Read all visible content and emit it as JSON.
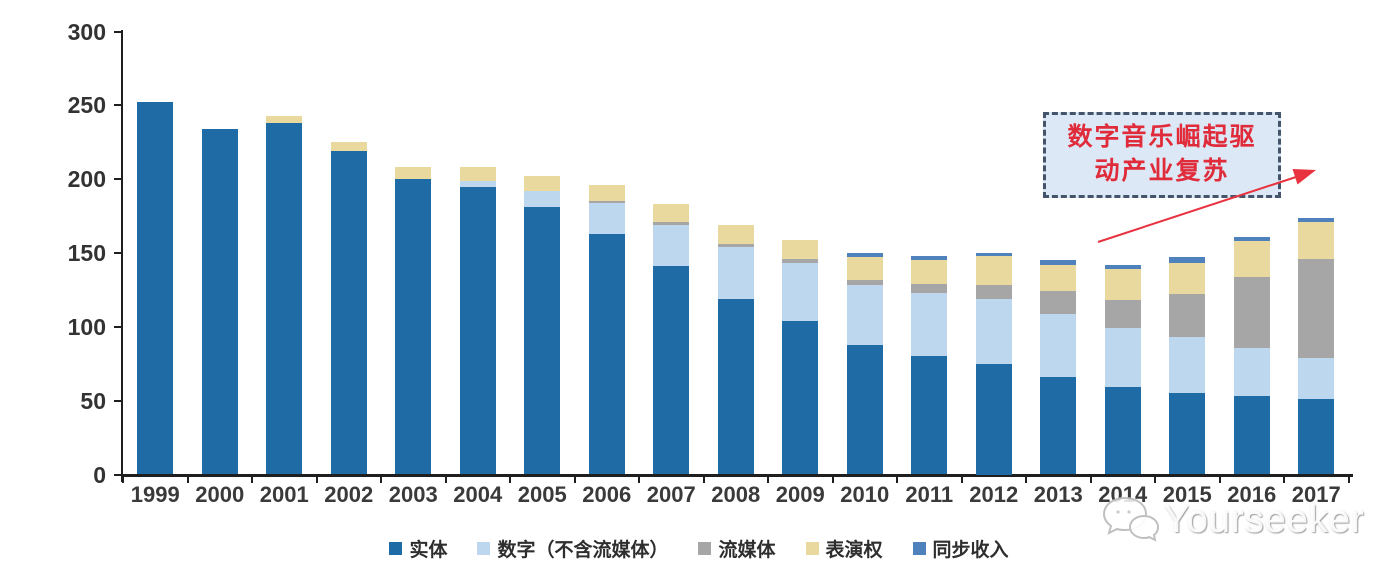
{
  "chart_data": {
    "type": "bar",
    "stacked": true,
    "title": "",
    "xlabel": "",
    "ylabel": "",
    "grid": false,
    "legend_position": "bottom",
    "ylim": [
      0,
      300
    ],
    "yticks": [
      0,
      50,
      100,
      150,
      200,
      250,
      300
    ],
    "categories": [
      "1999",
      "2000",
      "2001",
      "2002",
      "2003",
      "2004",
      "2005",
      "2006",
      "2007",
      "2008",
      "2009",
      "2010",
      "2011",
      "2012",
      "2013",
      "2014",
      "2015",
      "2016",
      "2017"
    ],
    "series": [
      {
        "name": "实体",
        "color": "#1f6ba5",
        "values": [
          252,
          234,
          238,
          219,
          200,
          195,
          181,
          163,
          141,
          119,
          104,
          88,
          80,
          75,
          66,
          59,
          55,
          53,
          51
        ]
      },
      {
        "name": "数字（不含流媒体）",
        "color": "#bdd7ee",
        "values": [
          0,
          0,
          0,
          0,
          0,
          4,
          11,
          21,
          28,
          35,
          39,
          40,
          43,
          44,
          43,
          40,
          38,
          33,
          28
        ]
      },
      {
        "name": "流媒体",
        "color": "#a6a6a6",
        "values": [
          0,
          0,
          0,
          0,
          0,
          0,
          0,
          1,
          2,
          2,
          3,
          4,
          6,
          9,
          15,
          19,
          29,
          48,
          67
        ]
      },
      {
        "name": "表演权",
        "color": "#e9d99e",
        "values": [
          0,
          0,
          5,
          6,
          8,
          9,
          10,
          11,
          12,
          13,
          13,
          15,
          16,
          20,
          18,
          21,
          21,
          24,
          25
        ]
      },
      {
        "name": "同步收入",
        "color": "#4f81bd",
        "values": [
          0,
          0,
          0,
          0,
          0,
          0,
          0,
          0,
          0,
          0,
          0,
          3,
          3,
          2,
          3,
          3,
          4,
          3,
          3
        ]
      }
    ]
  },
  "annotation": {
    "text": "数字音乐崛起驱动产业复苏",
    "line1": "数字音乐崛起驱",
    "line2": "动产业复苏",
    "text_color": "#e02b3a",
    "box_fill": "#dce8f6",
    "box_border": "#44546a",
    "arrow_color": "#e8323f"
  },
  "watermark": {
    "text": "Yourseeker",
    "icon": "chat-bubbles-icon"
  }
}
